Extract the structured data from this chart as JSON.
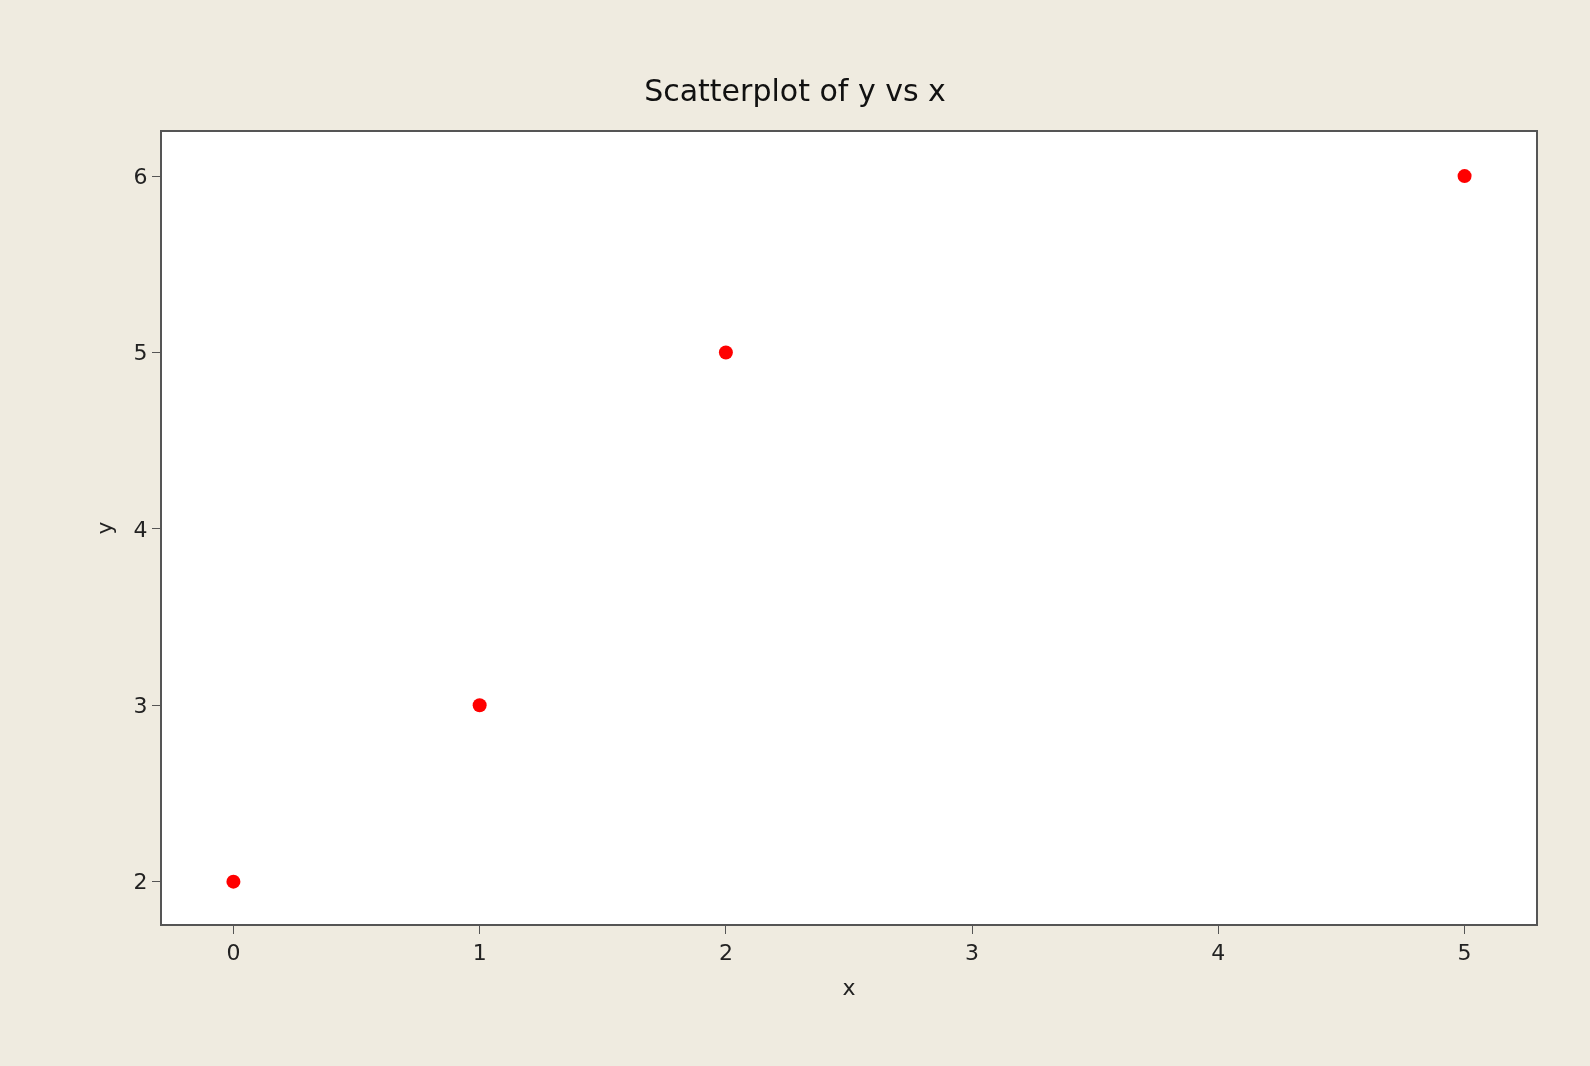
{
  "chart_data": {
    "type": "scatter",
    "title": "Scatterplot of y vs x",
    "xlabel": "x",
    "ylabel": "y",
    "x": [
      0,
      1,
      2,
      5
    ],
    "series": [
      {
        "color": "#ff0000",
        "values": [
          2,
          3,
          5,
          6
        ]
      }
    ],
    "xlim": [
      -0.29,
      5.29
    ],
    "ylim": [
      1.76,
      6.25
    ],
    "xticks": [
      0,
      1,
      2,
      3,
      4,
      5
    ],
    "yticks": [
      2,
      3,
      4,
      5,
      6
    ],
    "marker": "circle"
  }
}
